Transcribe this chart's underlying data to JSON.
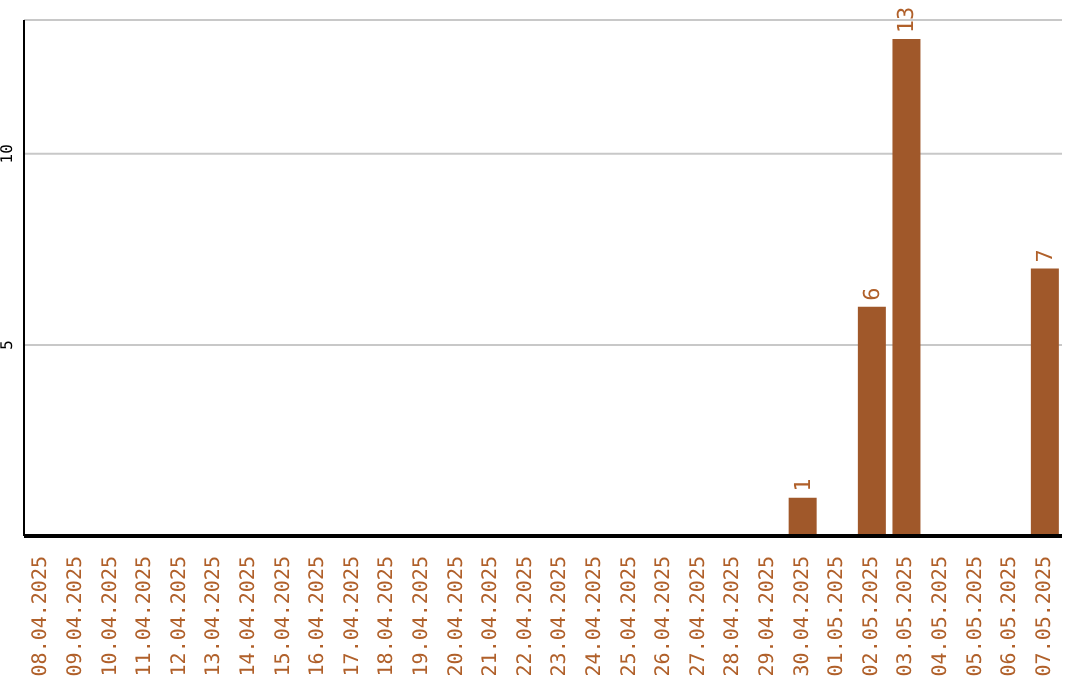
{
  "chart_data": {
    "type": "bar",
    "categories": [
      "08.04.2025",
      "09.04.2025",
      "10.04.2025",
      "11.04.2025",
      "12.04.2025",
      "13.04.2025",
      "14.04.2025",
      "15.04.2025",
      "16.04.2025",
      "17.04.2025",
      "18.04.2025",
      "19.04.2025",
      "20.04.2025",
      "21.04.2025",
      "22.04.2025",
      "23.04.2025",
      "24.04.2025",
      "25.04.2025",
      "26.04.2025",
      "27.04.2025",
      "28.04.2025",
      "29.04.2025",
      "30.04.2025",
      "01.05.2025",
      "02.05.2025",
      "03.05.2025",
      "04.05.2025",
      "05.05.2025",
      "06.05.2025",
      "07.05.2025"
    ],
    "values": [
      0,
      0,
      0,
      0,
      0,
      0,
      0,
      0,
      0,
      0,
      0,
      0,
      0,
      0,
      0,
      0,
      0,
      0,
      0,
      0,
      0,
      0,
      1,
      0,
      6,
      13,
      0,
      0,
      0,
      7
    ],
    "value_labels": [
      null,
      null,
      null,
      null,
      null,
      null,
      null,
      null,
      null,
      null,
      null,
      null,
      null,
      null,
      null,
      null,
      null,
      null,
      null,
      null,
      null,
      null,
      "1",
      null,
      "6",
      "13",
      null,
      null,
      null,
      "7"
    ],
    "color": "#a0582a",
    "ylim": [
      0,
      13.5
    ],
    "yticks": [
      5,
      10
    ],
    "grid": "y",
    "legend": false
  }
}
